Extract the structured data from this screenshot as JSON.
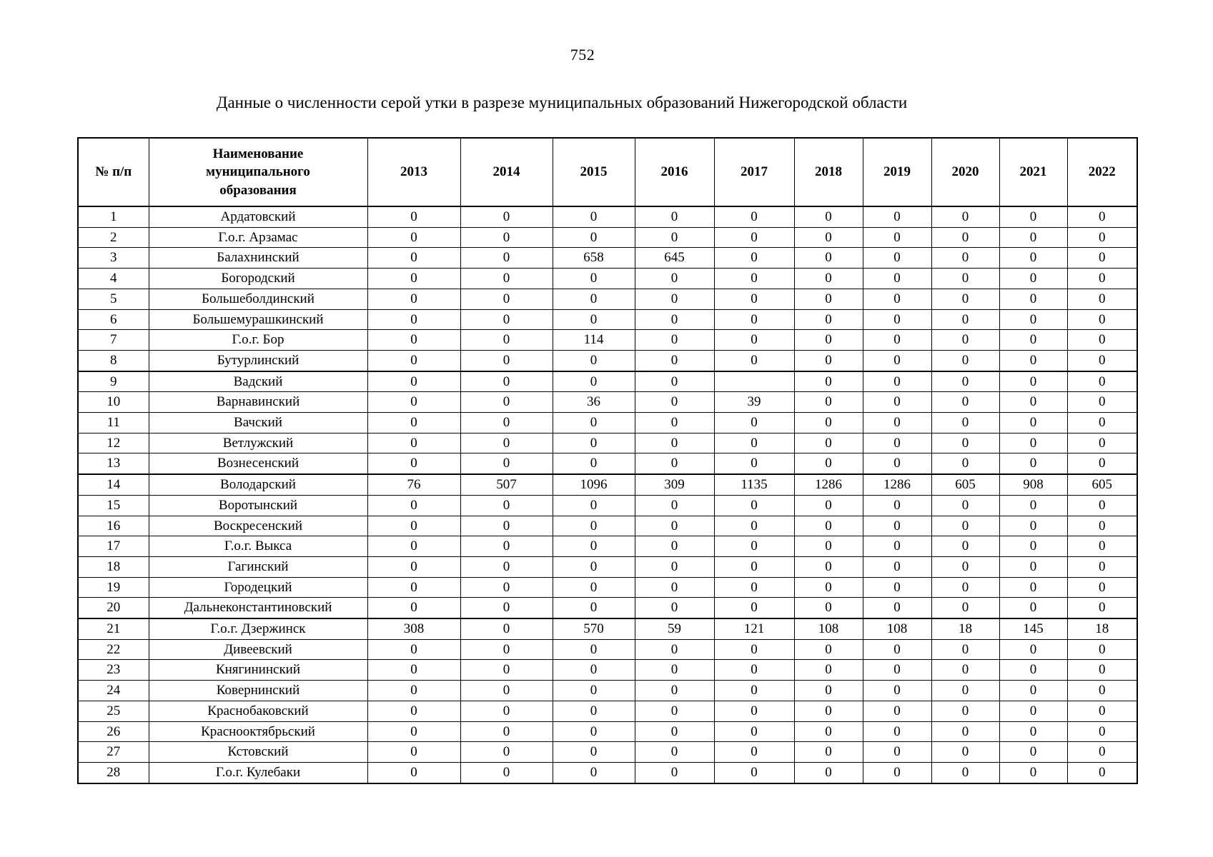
{
  "page": {
    "number": "752",
    "title": "Данные о численности серой утки в разрезе муниципальных образований Нижегородской области"
  },
  "table": {
    "col_headers": {
      "index": "№ п/п",
      "name": "Наименование муниципального образования"
    },
    "years": [
      "2013",
      "2014",
      "2015",
      "2016",
      "2017",
      "2018",
      "2019",
      "2020",
      "2021",
      "2022"
    ],
    "rows": [
      {
        "num": "1",
        "name": "Ардатовский",
        "values": [
          "0",
          "0",
          "0",
          "0",
          "0",
          "0",
          "0",
          "0",
          "0",
          "0"
        ]
      },
      {
        "num": "2",
        "name": "Г.о.г. Арзамас",
        "values": [
          "0",
          "0",
          "0",
          "0",
          "0",
          "0",
          "0",
          "0",
          "0",
          "0"
        ]
      },
      {
        "num": "3",
        "name": "Балахнинский",
        "values": [
          "0",
          "0",
          "658",
          "645",
          "0",
          "0",
          "0",
          "0",
          "0",
          "0"
        ]
      },
      {
        "num": "4",
        "name": "Богородский",
        "values": [
          "0",
          "0",
          "0",
          "0",
          "0",
          "0",
          "0",
          "0",
          "0",
          "0"
        ]
      },
      {
        "num": "5",
        "name": "Большеболдинский",
        "values": [
          "0",
          "0",
          "0",
          "0",
          "0",
          "0",
          "0",
          "0",
          "0",
          "0"
        ]
      },
      {
        "num": "6",
        "name": "Большемурашкинский",
        "values": [
          "0",
          "0",
          "0",
          "0",
          "0",
          "0",
          "0",
          "0",
          "0",
          "0"
        ]
      },
      {
        "num": "7",
        "name": "Г.о.г. Бор",
        "values": [
          "0",
          "0",
          "114",
          "0",
          "0",
          "0",
          "0",
          "0",
          "0",
          "0"
        ]
      },
      {
        "num": "8",
        "name": "Бутурлинский",
        "values": [
          "0",
          "0",
          "0",
          "0",
          "0",
          "0",
          "0",
          "0",
          "0",
          "0"
        ]
      },
      {
        "num": "9",
        "name": "Вадский",
        "values": [
          "0",
          "0",
          "0",
          "0",
          "",
          "0",
          "0",
          "0",
          "0",
          "0"
        ]
      },
      {
        "num": "10",
        "name": "Варнавинский",
        "values": [
          "0",
          "0",
          "36",
          "0",
          "39",
          "0",
          "0",
          "0",
          "0",
          "0"
        ]
      },
      {
        "num": "11",
        "name": "Вачский",
        "values": [
          "0",
          "0",
          "0",
          "0",
          "0",
          "0",
          "0",
          "0",
          "0",
          "0"
        ]
      },
      {
        "num": "12",
        "name": "Ветлужский",
        "values": [
          "0",
          "0",
          "0",
          "0",
          "0",
          "0",
          "0",
          "0",
          "0",
          "0"
        ]
      },
      {
        "num": "13",
        "name": "Вознесенский",
        "values": [
          "0",
          "0",
          "0",
          "0",
          "0",
          "0",
          "0",
          "0",
          "0",
          "0"
        ]
      },
      {
        "num": "14",
        "name": "Володарский",
        "values": [
          "76",
          "507",
          "1096",
          "309",
          "1135",
          "1286",
          "1286",
          "605",
          "908",
          "605"
        ]
      },
      {
        "num": "15",
        "name": "Воротынский",
        "values": [
          "0",
          "0",
          "0",
          "0",
          "0",
          "0",
          "0",
          "0",
          "0",
          "0"
        ]
      },
      {
        "num": "16",
        "name": "Воскресенский",
        "values": [
          "0",
          "0",
          "0",
          "0",
          "0",
          "0",
          "0",
          "0",
          "0",
          "0"
        ]
      },
      {
        "num": "17",
        "name": "Г.о.г. Выкса",
        "values": [
          "0",
          "0",
          "0",
          "0",
          "0",
          "0",
          "0",
          "0",
          "0",
          "0"
        ]
      },
      {
        "num": "18",
        "name": "Гагинский",
        "values": [
          "0",
          "0",
          "0",
          "0",
          "0",
          "0",
          "0",
          "0",
          "0",
          "0"
        ]
      },
      {
        "num": "19",
        "name": "Городецкий",
        "values": [
          "0",
          "0",
          "0",
          "0",
          "0",
          "0",
          "0",
          "0",
          "0",
          "0"
        ]
      },
      {
        "num": "20",
        "name": "Дальнеконстантиновский",
        "values": [
          "0",
          "0",
          "0",
          "0",
          "0",
          "0",
          "0",
          "0",
          "0",
          "0"
        ]
      },
      {
        "num": "21",
        "name": "Г.о.г. Дзержинск",
        "values": [
          "308",
          "0",
          "570",
          "59",
          "121",
          "108",
          "108",
          "18",
          "145",
          "18"
        ]
      },
      {
        "num": "22",
        "name": "Дивеевский",
        "values": [
          "0",
          "0",
          "0",
          "0",
          "0",
          "0",
          "0",
          "0",
          "0",
          "0"
        ]
      },
      {
        "num": "23",
        "name": "Княгининский",
        "values": [
          "0",
          "0",
          "0",
          "0",
          "0",
          "0",
          "0",
          "0",
          "0",
          "0"
        ]
      },
      {
        "num": "24",
        "name": "Ковернинский",
        "values": [
          "0",
          "0",
          "0",
          "0",
          "0",
          "0",
          "0",
          "0",
          "0",
          "0"
        ]
      },
      {
        "num": "25",
        "name": "Краснобаковский",
        "values": [
          "0",
          "0",
          "0",
          "0",
          "0",
          "0",
          "0",
          "0",
          "0",
          "0"
        ]
      },
      {
        "num": "26",
        "name": "Краснооктябрьский",
        "values": [
          "0",
          "0",
          "0",
          "0",
          "0",
          "0",
          "0",
          "0",
          "0",
          "0"
        ]
      },
      {
        "num": "27",
        "name": "Кстовский",
        "values": [
          "0",
          "0",
          "0",
          "0",
          "0",
          "0",
          "0",
          "0",
          "0",
          "0"
        ]
      },
      {
        "num": "28",
        "name": "Г.о.г. Кулебаки",
        "values": [
          "0",
          "0",
          "0",
          "0",
          "0",
          "0",
          "0",
          "0",
          "0",
          "0"
        ]
      }
    ],
    "thick_top_rows": [
      9,
      14,
      21
    ]
  }
}
